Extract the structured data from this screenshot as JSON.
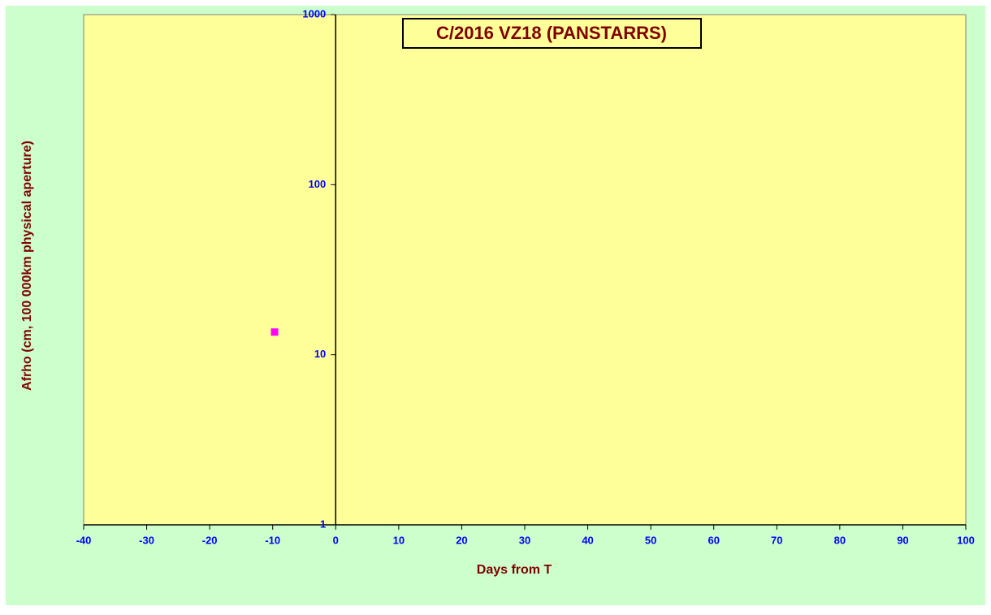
{
  "chart_data": {
    "type": "scatter",
    "title": "C/2016 VZ18 (PANSTARRS)",
    "x_label": "Days from T",
    "y_label": "Afrho (cm, 100 000km physical aperture)",
    "xlim": [
      -40,
      100
    ],
    "ylim": [
      1,
      1000
    ],
    "y_scale": "log",
    "xticks": [
      -40,
      -30,
      -20,
      -10,
      0,
      10,
      20,
      30,
      40,
      50,
      60,
      70,
      80,
      90,
      100
    ],
    "yticks": [
      1,
      10,
      100,
      1000
    ],
    "series": [
      {
        "color": "#ff00ff",
        "x": [
          -9.7
        ],
        "values": [
          13.6
        ]
      }
    ]
  }
}
